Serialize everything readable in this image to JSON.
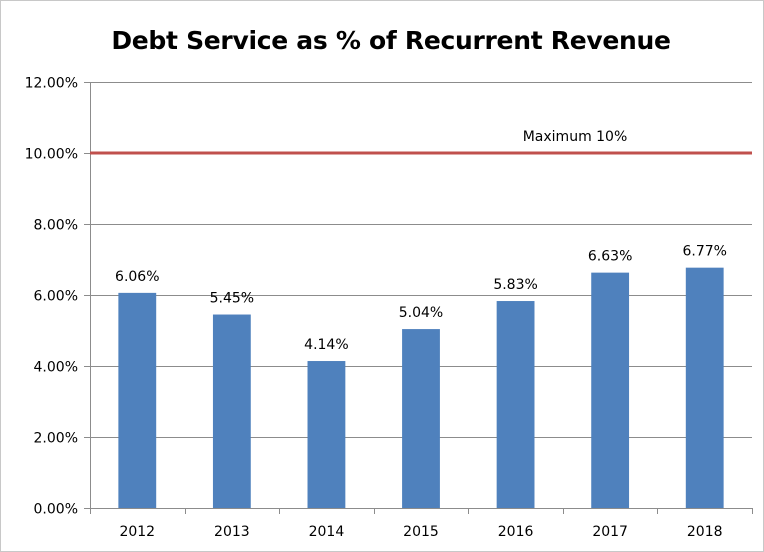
{
  "chart_data": {
    "type": "bar",
    "title": "Debt Service as % of Recurrent Revenue",
    "xlabel": "",
    "ylabel": "",
    "categories": [
      "2012",
      "2013",
      "2014",
      "2015",
      "2016",
      "2017",
      "2018"
    ],
    "values": [
      6.06,
      5.45,
      4.14,
      5.04,
      5.83,
      6.63,
      6.77
    ],
    "value_labels": [
      "6.06%",
      "5.45%",
      "4.14%",
      "5.04%",
      "5.83%",
      "6.63%",
      "6.77%"
    ],
    "ylim": [
      0,
      12
    ],
    "y_ticks": [
      0,
      2,
      4,
      6,
      8,
      10,
      12
    ],
    "y_tick_labels": [
      "0.00%",
      "2.00%",
      "4.00%",
      "6.00%",
      "8.00%",
      "10.00%",
      "12.00%"
    ],
    "grid": true,
    "bar_color": "#4f81bd",
    "reference_line": {
      "value": 10,
      "label": "Maximum  10%",
      "color": "#c0504d"
    }
  }
}
